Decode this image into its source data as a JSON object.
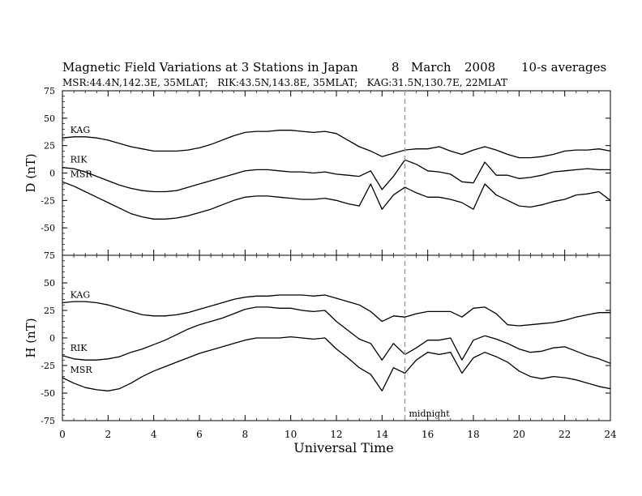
{
  "title": "Magnetic Field Variations at 3 Stations in Japan",
  "date": {
    "day": "8",
    "month": "March",
    "year": "2008"
  },
  "averaging": "10-s averages",
  "subtitle": "MSR:44.4N,142.3E, 35MLAT;   RIK:43.5N,143.8E, 35MLAT;   KAG:31.5N,130.7E, 22MLAT",
  "colors": {
    "line": "#000000",
    "marker": "#a0a0a0",
    "background": "#ffffff"
  },
  "chart_data": [
    {
      "type": "line",
      "panel": "D",
      "ylabel": "D (nT)",
      "ylim": [
        -75,
        75
      ],
      "yticks": [
        75,
        50,
        25,
        0,
        -25,
        -50,
        -75
      ],
      "xlim": [
        0,
        24
      ],
      "x": [
        0,
        0.5,
        1,
        1.5,
        2,
        2.5,
        3,
        3.5,
        4,
        4.5,
        5,
        5.5,
        6,
        6.5,
        7,
        7.5,
        8,
        8.5,
        9,
        9.5,
        10,
        10.5,
        11,
        11.5,
        12,
        12.5,
        13,
        13.5,
        14,
        14.5,
        15,
        15.5,
        16,
        16.5,
        17,
        17.5,
        18,
        18.5,
        19,
        19.5,
        20,
        20.5,
        21,
        21.5,
        22,
        22.5,
        23,
        23.5,
        24
      ],
      "series": [
        {
          "name": "KAG",
          "values": [
            32,
            33,
            33,
            32,
            30,
            27,
            24,
            22,
            20,
            20,
            20,
            21,
            23,
            26,
            30,
            34,
            37,
            38,
            38,
            39,
            39,
            38,
            37,
            38,
            36,
            30,
            24,
            20,
            15,
            18,
            21,
            22,
            22,
            24,
            20,
            17,
            21,
            24,
            21,
            17,
            14,
            14,
            15,
            17,
            20,
            21,
            21,
            22,
            20
          ]
        },
        {
          "name": "RIK",
          "values": [
            5,
            4,
            1,
            -3,
            -7,
            -11,
            -14,
            -16,
            -17,
            -17,
            -16,
            -13,
            -10,
            -7,
            -4,
            -1,
            2,
            3,
            3,
            2,
            1,
            1,
            0,
            1,
            -1,
            -2,
            -3,
            2,
            -15,
            -3,
            12,
            8,
            2,
            1,
            -1,
            -8,
            -9,
            10,
            -2,
            -2,
            -5,
            -4,
            -2,
            1,
            2,
            3,
            4,
            3,
            3
          ]
        },
        {
          "name": "MSR",
          "values": [
            -8,
            -12,
            -17,
            -22,
            -27,
            -32,
            -37,
            -40,
            -42,
            -42,
            -41,
            -39,
            -36,
            -33,
            -29,
            -25,
            -22,
            -21,
            -21,
            -22,
            -23,
            -24,
            -24,
            -23,
            -25,
            -28,
            -30,
            -10,
            -33,
            -20,
            -13,
            -18,
            -22,
            -22,
            -24,
            -27,
            -33,
            -10,
            -20,
            -25,
            -30,
            -31,
            -29,
            -26,
            -24,
            -20,
            -19,
            -17,
            -25
          ]
        }
      ],
      "label_x": [
        0.2,
        0.2,
        0.2
      ]
    },
    {
      "type": "line",
      "panel": "H",
      "ylabel": "H (nT)",
      "ylim": [
        -75,
        75
      ],
      "yticks": [
        75,
        50,
        25,
        0,
        -25,
        -50,
        -75
      ],
      "xlim": [
        0,
        24
      ],
      "xlabel": "Universal Time",
      "xticks": [
        0,
        2,
        4,
        6,
        8,
        10,
        12,
        14,
        16,
        18,
        20,
        22,
        24
      ],
      "x": [
        0,
        0.5,
        1,
        1.5,
        2,
        2.5,
        3,
        3.5,
        4,
        4.5,
        5,
        5.5,
        6,
        6.5,
        7,
        7.5,
        8,
        8.5,
        9,
        9.5,
        10,
        10.5,
        11,
        11.5,
        12,
        12.5,
        13,
        13.5,
        14,
        14.5,
        15,
        15.5,
        16,
        16.5,
        17,
        17.5,
        18,
        18.5,
        19,
        19.5,
        20,
        20.5,
        21,
        21.5,
        22,
        22.5,
        23,
        23.5,
        24
      ],
      "series": [
        {
          "name": "KAG",
          "values": [
            32,
            33,
            33,
            32,
            30,
            27,
            24,
            21,
            20,
            20,
            21,
            23,
            26,
            29,
            32,
            35,
            37,
            38,
            38,
            39,
            39,
            39,
            38,
            39,
            36,
            33,
            30,
            24,
            15,
            20,
            19,
            22,
            24,
            24,
            24,
            19,
            27,
            28,
            22,
            12,
            11,
            12,
            13,
            14,
            16,
            19,
            21,
            23,
            23
          ]
        },
        {
          "name": "RIK",
          "values": [
            -16,
            -19,
            -20,
            -20,
            -19,
            -17,
            -13,
            -10,
            -6,
            -2,
            3,
            8,
            12,
            15,
            18,
            22,
            26,
            28,
            28,
            27,
            27,
            25,
            24,
            25,
            15,
            7,
            -1,
            -5,
            -20,
            -5,
            -15,
            -9,
            -2,
            -2,
            0,
            -20,
            -2,
            2,
            -1,
            -5,
            -10,
            -13,
            -12,
            -9,
            -8,
            -12,
            -16,
            -19,
            -23
          ]
        },
        {
          "name": "MSR",
          "values": [
            -36,
            -41,
            -45,
            -47,
            -48,
            -46,
            -41,
            -35,
            -30,
            -26,
            -22,
            -18,
            -14,
            -11,
            -8,
            -5,
            -2,
            0,
            0,
            0,
            1,
            0,
            -1,
            0,
            -10,
            -18,
            -27,
            -33,
            -48,
            -27,
            -32,
            -20,
            -13,
            -15,
            -13,
            -32,
            -18,
            -13,
            -17,
            -22,
            -30,
            -35,
            -37,
            -35,
            -36,
            -38,
            -41,
            -44,
            -46
          ]
        }
      ],
      "label_x": [
        0.2,
        0.2,
        0.2
      ]
    }
  ],
  "marker": {
    "x": 15,
    "label": "midnight"
  }
}
